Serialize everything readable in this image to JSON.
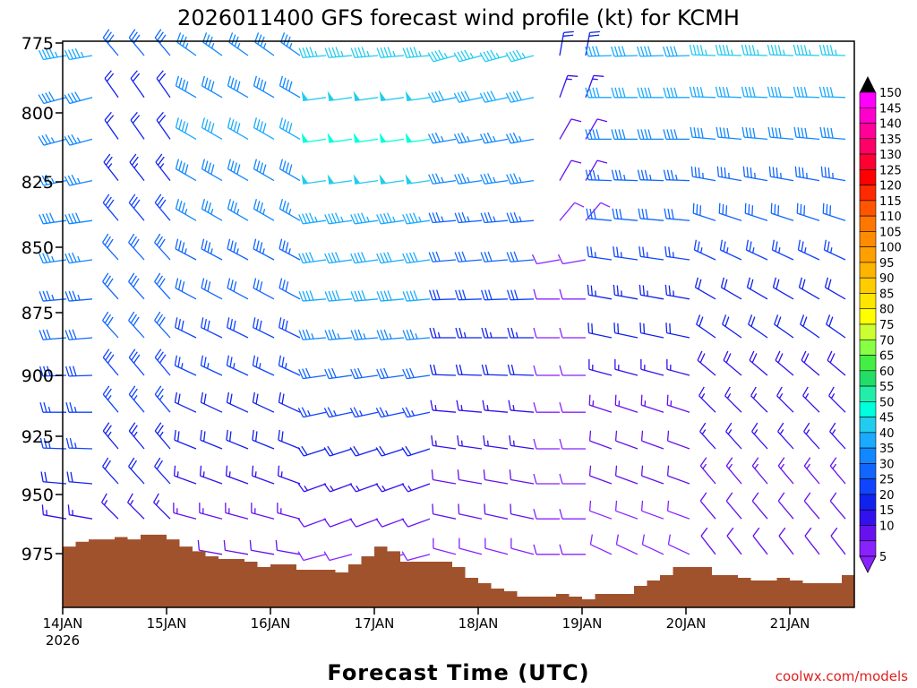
{
  "chart_data": {
    "type": "wind-barb-profile",
    "title": "2026011400 GFS forecast wind profile (kt) for KCMH",
    "xlabel": "Forecast Time (UTC)",
    "credit": "coolwx.com/models",
    "x_ticks": [
      {
        "label": "14JAN",
        "sublabel": "2026",
        "hour": 0
      },
      {
        "label": "15JAN",
        "hour": 24
      },
      {
        "label": "16JAN",
        "hour": 48
      },
      {
        "label": "17JAN",
        "hour": 72
      },
      {
        "label": "18JAN",
        "hour": 96
      },
      {
        "label": "19JAN",
        "hour": 120
      },
      {
        "label": "20JAN",
        "hour": 144
      },
      {
        "label": "21JAN",
        "hour": 168
      }
    ],
    "x_range_hours": [
      0,
      180
    ],
    "y_ticks": [
      {
        "label": "775",
        "value": 775
      },
      {
        "label": "800",
        "value": 800
      },
      {
        "label": "825",
        "value": 825
      },
      {
        "label": "850",
        "value": 850
      },
      {
        "label": "875",
        "value": 875
      },
      {
        "label": "900",
        "value": 900
      },
      {
        "label": "925",
        "value": 925
      },
      {
        "label": "950",
        "value": 950
      },
      {
        "label": "975",
        "value": 975
      }
    ],
    "y_range_mb": [
      775,
      995
    ],
    "levels_mb": [
      775,
      790,
      805,
      820,
      835,
      850,
      865,
      880,
      895,
      910,
      925,
      940,
      955,
      970
    ],
    "colorbar": {
      "labels": [
        "150",
        "145",
        "140",
        "135",
        "130",
        "125",
        "120",
        "115",
        "110",
        "105",
        "100",
        "95",
        "90",
        "85",
        "80",
        "75",
        "70",
        "65",
        "60",
        "55",
        "50",
        "45",
        "40",
        "35",
        "30",
        "25",
        "20",
        "15",
        "10",
        "5"
      ],
      "colors": [
        "#ff00ff",
        "#ff00cc",
        "#ff0099",
        "#ff0066",
        "#ff0033",
        "#ff0000",
        "#ff2a00",
        "#ff5500",
        "#ff7700",
        "#ff8c00",
        "#ffa000",
        "#ffb400",
        "#ffcc00",
        "#ffe600",
        "#ffff00",
        "#ccff33",
        "#88ff44",
        "#44ee44",
        "#22dd66",
        "#22eeaa",
        "#00ffdd",
        "#22ccee",
        "#1aaaff",
        "#1188ff",
        "#1166ff",
        "#1144ff",
        "#1122ee",
        "#3311ee",
        "#6611ee",
        "#8822ff"
      ]
    },
    "time_segments": [
      {
        "t0": 0,
        "t1": 12,
        "speed": [
          44,
          38,
          37,
          37,
          38,
          35,
          33,
          30,
          28,
          27,
          25,
          20,
          16,
          14
        ],
        "dir": [
          260,
          255,
          255,
          258,
          262,
          262,
          265,
          265,
          268,
          270,
          272,
          275,
          280,
          285
        ]
      },
      {
        "t0": 12,
        "t1": 30,
        "speed": [
          30,
          22,
          22,
          24,
          28,
          30,
          30,
          30,
          28,
          26,
          24,
          20,
          16,
          12
        ],
        "dir": [
          320,
          325,
          325,
          322,
          320,
          318,
          318,
          318,
          320,
          320,
          320,
          318,
          315,
          315
        ]
      },
      {
        "t0": 30,
        "t1": 60,
        "speed": [
          35,
          38,
          40,
          38,
          36,
          33,
          30,
          28,
          25,
          22,
          20,
          17,
          14,
          12
        ],
        "dir": [
          305,
          300,
          300,
          300,
          300,
          298,
          298,
          296,
          295,
          295,
          292,
          290,
          285,
          280
        ]
      },
      {
        "t0": 60,
        "t1": 90,
        "speed": [
          45,
          48,
          50,
          48,
          44,
          42,
          40,
          35,
          30,
          25,
          20,
          16,
          12,
          9
        ],
        "dir": [
          265,
          262,
          262,
          262,
          262,
          262,
          265,
          265,
          262,
          258,
          252,
          250,
          250,
          255
        ]
      },
      {
        "t0": 90,
        "t1": 114,
        "speed": [
          45,
          40,
          36,
          35,
          33,
          30,
          28,
          24,
          20,
          17,
          15,
          12,
          10,
          8
        ],
        "dir": [
          255,
          258,
          260,
          262,
          265,
          265,
          268,
          270,
          272,
          275,
          278,
          280,
          282,
          285
        ]
      },
      {
        "t0": 114,
        "t1": 122,
        "speed": [
          20,
          15,
          12,
          10,
          8,
          8,
          8,
          8,
          8,
          8,
          8,
          8,
          8,
          8
        ],
        "dir": [
          10,
          20,
          30,
          30,
          40,
          260,
          270,
          270,
          270,
          270,
          270,
          270,
          270,
          270
        ]
      },
      {
        "t0": 122,
        "t1": 146,
        "speed": [
          42,
          40,
          38,
          34,
          30,
          26,
          24,
          20,
          16,
          13,
          12,
          10,
          9,
          8
        ],
        "dir": [
          268,
          270,
          270,
          272,
          275,
          278,
          280,
          282,
          285,
          288,
          290,
          290,
          290,
          295
        ]
      },
      {
        "t0": 146,
        "t1": 180,
        "speed": [
          46,
          42,
          38,
          34,
          30,
          26,
          22,
          20,
          18,
          16,
          15,
          13,
          12,
          10
        ],
        "dir": [
          272,
          272,
          275,
          280,
          288,
          295,
          300,
          305,
          310,
          315,
          318,
          320,
          320,
          322
        ]
      }
    ],
    "terrain": {
      "color": "#a0522d",
      "hours": [
        0,
        3,
        6,
        9,
        12,
        15,
        18,
        21,
        24,
        27,
        30,
        33,
        36,
        39,
        42,
        45,
        48,
        51,
        54,
        57,
        60,
        63,
        66,
        69,
        72,
        75,
        78,
        81,
        84,
        87,
        90,
        93,
        96,
        99,
        102,
        105,
        108,
        111,
        114,
        117,
        120,
        123,
        126,
        129,
        132,
        135,
        138,
        141,
        144,
        147,
        150,
        153,
        156,
        159,
        162,
        165,
        168,
        171,
        174,
        177,
        180
      ],
      "surface_mb": [
        972,
        970,
        969,
        969,
        968,
        969,
        967,
        967,
        969,
        972,
        974,
        976,
        977,
        977,
        978,
        980,
        979,
        979,
        981,
        981,
        981,
        982,
        979,
        976,
        972,
        974,
        978,
        978,
        978,
        978,
        980,
        984,
        986,
        988,
        989,
        991,
        991,
        991,
        990,
        991,
        992,
        990,
        990,
        990,
        987,
        985,
        983,
        980,
        980,
        980,
        983,
        983,
        984,
        985,
        985,
        984,
        985,
        986,
        986,
        986,
        983
      ]
    }
  }
}
